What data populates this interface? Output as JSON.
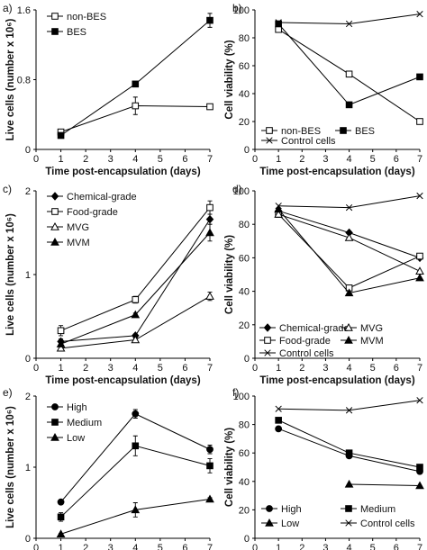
{
  "chart_data": [
    {
      "panel": "a)",
      "type": "line",
      "xlabel": "Time post-encapsulation (days)",
      "ylabel": "Live cells (number x 10⁶)",
      "xlim": [
        0,
        7
      ],
      "ylim": [
        0,
        1.6
      ],
      "xticks": [
        0,
        1,
        2,
        3,
        4,
        5,
        6,
        7
      ],
      "yticks": [
        0,
        0.8,
        1.6
      ],
      "ytick_labels": [
        "0",
        "0.8",
        "1.6"
      ],
      "legend": "top-left",
      "series": [
        {
          "name": "non-BES",
          "marker": "open-square",
          "x": [
            1,
            4,
            7
          ],
          "y": [
            0.2,
            0.5,
            0.49
          ],
          "err": [
            0.03,
            0.1,
            0.02
          ]
        },
        {
          "name": "BES",
          "marker": "filled-square",
          "x": [
            1,
            4,
            7
          ],
          "y": [
            0.16,
            0.75,
            1.48
          ],
          "err": [
            0.02,
            0.02,
            0.08
          ]
        }
      ]
    },
    {
      "panel": "b)",
      "type": "line",
      "xlabel": "Time post-encapsulation (days)",
      "ylabel": "Cell viability (%)",
      "xlim": [
        0,
        7
      ],
      "ylim": [
        0,
        100
      ],
      "xticks": [
        0,
        1,
        2,
        3,
        4,
        5,
        6,
        7
      ],
      "yticks": [
        0,
        20,
        40,
        60,
        80,
        100
      ],
      "ytick_labels": [
        "0",
        "20",
        "40",
        "60",
        "80",
        "100"
      ],
      "legend": "bottom",
      "series": [
        {
          "name": "non-BES",
          "marker": "open-square",
          "x": [
            1,
            4,
            7
          ],
          "y": [
            86,
            54,
            20
          ]
        },
        {
          "name": "BES",
          "marker": "filled-square",
          "x": [
            1,
            4,
            7
          ],
          "y": [
            90,
            32,
            52
          ]
        },
        {
          "name": "Control cells",
          "marker": "x",
          "x": [
            1,
            4,
            7
          ],
          "y": [
            91,
            90,
            97
          ]
        }
      ]
    },
    {
      "panel": "c)",
      "type": "line",
      "xlabel": "Time post-encapsulation (days)",
      "ylabel": "Live cells (number x 10⁶)",
      "xlim": [
        0,
        7
      ],
      "ylim": [
        0,
        2
      ],
      "xticks": [
        0,
        1,
        2,
        3,
        4,
        5,
        6,
        7
      ],
      "yticks": [
        0,
        1,
        2
      ],
      "ytick_labels": [
        "0",
        "1",
        "2"
      ],
      "legend": "top-left",
      "series": [
        {
          "name": "Chemical-grade",
          "marker": "filled-diamond",
          "x": [
            1,
            4,
            7
          ],
          "y": [
            0.2,
            0.27,
            1.66
          ],
          "err": [
            0.03,
            0.02,
            0.06
          ]
        },
        {
          "name": "Food-grade",
          "marker": "open-square",
          "x": [
            1,
            4,
            7
          ],
          "y": [
            0.33,
            0.7,
            1.8
          ],
          "err": [
            0.06,
            0.04,
            0.08
          ]
        },
        {
          "name": "MVG",
          "marker": "open-triangle",
          "x": [
            1,
            4,
            7
          ],
          "y": [
            0.12,
            0.22,
            0.74
          ],
          "err": [
            0.02,
            0.02,
            0.05
          ]
        },
        {
          "name": "MVM",
          "marker": "filled-triangle",
          "x": [
            1,
            4,
            7
          ],
          "y": [
            0.17,
            0.52,
            1.5
          ],
          "err": [
            0.02,
            0.02,
            0.1
          ]
        }
      ]
    },
    {
      "panel": "d)",
      "type": "line",
      "xlabel": "Time post-encapsulation (days)",
      "ylabel": "Cell viability (%)",
      "xlim": [
        0,
        7
      ],
      "ylim": [
        0,
        100
      ],
      "xticks": [
        0,
        1,
        2,
        3,
        4,
        5,
        6,
        7
      ],
      "yticks": [
        0,
        20,
        40,
        60,
        80,
        100
      ],
      "ytick_labels": [
        "0",
        "20",
        "40",
        "60",
        "80",
        "100"
      ],
      "legend": "bottom",
      "series": [
        {
          "name": "Chemical-grade",
          "marker": "filled-diamond",
          "x": [
            1,
            4,
            7
          ],
          "y": [
            88,
            75,
            60
          ]
        },
        {
          "name": "Food-grade",
          "marker": "open-square",
          "x": [
            1,
            4,
            7
          ],
          "y": [
            86,
            42,
            61
          ]
        },
        {
          "name": "Control cells",
          "marker": "x",
          "x": [
            1,
            4,
            7
          ],
          "y": [
            91,
            90,
            97
          ]
        },
        {
          "name": "MVG",
          "marker": "open-triangle",
          "x": [
            1,
            4,
            7
          ],
          "y": [
            86,
            72,
            52
          ]
        },
        {
          "name": "MVM",
          "marker": "filled-triangle",
          "x": [
            1,
            4,
            7
          ],
          "y": [
            89,
            39,
            48
          ]
        }
      ]
    },
    {
      "panel": "e)",
      "type": "line",
      "xlabel": "Time post-encapsulation (days)",
      "ylabel": "Live cells (number x 10⁶)",
      "xlim": [
        0,
        7
      ],
      "ylim": [
        0,
        2
      ],
      "xticks": [
        0,
        1,
        2,
        3,
        4,
        5,
        6,
        7
      ],
      "yticks": [
        0,
        1,
        2
      ],
      "ytick_labels": [
        "0",
        "1",
        "2"
      ],
      "legend": "top-left",
      "series": [
        {
          "name": "High",
          "marker": "filled-circle",
          "x": [
            1,
            4,
            7
          ],
          "y": [
            0.51,
            1.75,
            1.25
          ],
          "err": [
            0.02,
            0.06,
            0.06
          ]
        },
        {
          "name": "Medium",
          "marker": "filled-square",
          "x": [
            1,
            4,
            7
          ],
          "y": [
            0.3,
            1.3,
            1.02
          ],
          "err": [
            0.06,
            0.14,
            0.1
          ]
        },
        {
          "name": "Low",
          "marker": "filled-triangle",
          "x": [
            1,
            4,
            7
          ],
          "y": [
            0.06,
            0.4,
            0.55
          ],
          "err": [
            0.01,
            0.1,
            0.02
          ]
        }
      ]
    },
    {
      "panel": "f)",
      "type": "line",
      "xlabel": "Time post-encapsulation (days)",
      "ylabel": "Cell viability (%)",
      "xlim": [
        0,
        7
      ],
      "ylim": [
        0,
        100
      ],
      "xticks": [
        0,
        1,
        2,
        3,
        4,
        5,
        6,
        7
      ],
      "yticks": [
        0,
        20,
        40,
        60,
        80,
        100
      ],
      "ytick_labels": [
        "0",
        "20",
        "40",
        "60",
        "80",
        "100"
      ],
      "legend": "bottom",
      "series": [
        {
          "name": "High",
          "marker": "filled-circle",
          "x": [
            1,
            4,
            7
          ],
          "y": [
            77,
            58,
            47
          ]
        },
        {
          "name": "Medium",
          "marker": "filled-square",
          "x": [
            1,
            4,
            7
          ],
          "y": [
            83,
            60,
            50
          ]
        },
        {
          "name": "Low",
          "marker": "filled-triangle",
          "x": [
            4,
            7
          ],
          "y": [
            38,
            37
          ]
        },
        {
          "name": "Control cells",
          "marker": "x",
          "x": [
            1,
            4,
            7
          ],
          "y": [
            91,
            90,
            97
          ]
        }
      ]
    }
  ]
}
